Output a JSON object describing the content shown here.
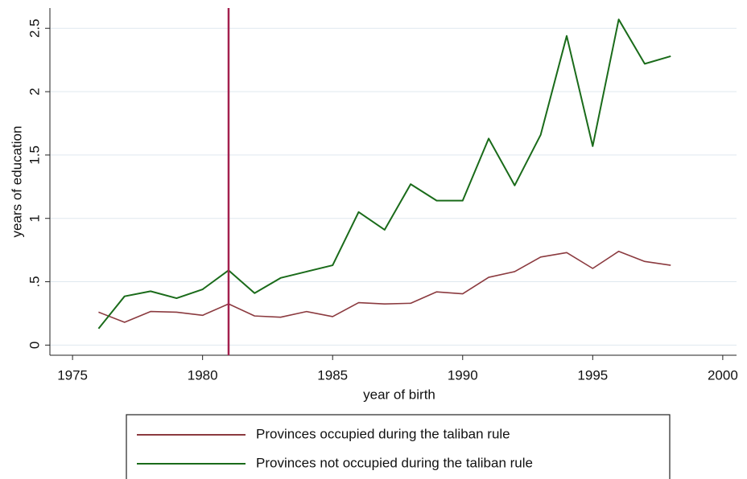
{
  "chart_data": {
    "type": "line",
    "xlabel": "year of birth",
    "ylabel": "years of education",
    "x": [
      1976,
      1977,
      1978,
      1979,
      1980,
      1981,
      1982,
      1983,
      1984,
      1985,
      1986,
      1987,
      1988,
      1989,
      1990,
      1991,
      1992,
      1993,
      1994,
      1995,
      1996,
      1997,
      1998
    ],
    "series": [
      {
        "name": "Provinces occupied during the taliban rule",
        "color": "#8b3a3f",
        "values": [
          0.26,
          0.18,
          0.265,
          0.26,
          0.235,
          0.325,
          0.23,
          0.22,
          0.265,
          0.225,
          0.335,
          0.325,
          0.33,
          0.42,
          0.405,
          0.535,
          0.58,
          0.695,
          0.73,
          0.605,
          0.74,
          0.66,
          0.63
        ]
      },
      {
        "name": "Provinces not occupied during the taliban rule",
        "color": "#1a6b1a",
        "values": [
          0.13,
          0.385,
          0.425,
          0.37,
          0.44,
          0.59,
          0.41,
          0.53,
          0.58,
          0.63,
          1.05,
          0.91,
          1.27,
          1.14,
          1.14,
          1.63,
          1.26,
          1.66,
          2.44,
          1.57,
          2.57,
          2.22,
          2.28
        ]
      }
    ],
    "vline": {
      "x": 1981,
      "color": "#a3204e"
    },
    "xlim": [
      1974.13,
      2000.53
    ],
    "xticks": [
      1975,
      1980,
      1985,
      1990,
      1995,
      2000
    ],
    "ylim": [
      -0.08,
      2.66
    ],
    "yticks": [
      0,
      {
        "value": 0.5,
        "label": ".5"
      },
      1,
      1.5,
      2,
      2.5
    ],
    "grid": true,
    "legend": "bottom"
  }
}
